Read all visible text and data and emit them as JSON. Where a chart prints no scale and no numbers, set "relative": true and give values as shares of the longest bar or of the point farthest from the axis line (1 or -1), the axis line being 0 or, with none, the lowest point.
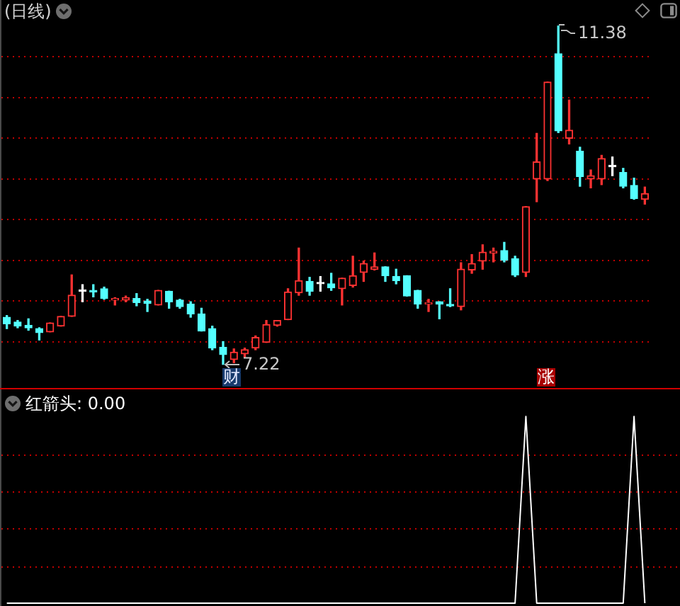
{
  "chart_data": [
    {
      "type": "candlestick",
      "title": "(日线)",
      "categories": [
        null,
        null,
        null,
        null,
        null,
        null,
        null,
        null,
        null,
        null,
        null,
        null,
        null,
        null,
        null,
        null,
        null,
        null,
        null,
        null,
        null,
        null,
        null,
        null,
        null,
        null,
        null,
        null,
        null,
        null,
        null,
        null,
        null,
        null,
        null,
        null,
        null,
        null,
        null,
        null,
        null,
        null,
        null,
        null,
        null,
        null,
        null,
        null,
        null,
        null,
        null,
        null,
        null,
        null,
        null,
        null,
        null,
        null,
        null,
        null
      ],
      "ohlc": [
        [
          7.8,
          7.82,
          7.66,
          7.72
        ],
        [
          7.74,
          7.76,
          7.67,
          7.69
        ],
        [
          7.7,
          7.78,
          7.64,
          7.67
        ],
        [
          7.66,
          7.67,
          7.52,
          7.61
        ],
        [
          7.62,
          7.73,
          7.62,
          7.73
        ],
        [
          7.69,
          7.81,
          7.69,
          7.81
        ],
        [
          7.81,
          8.32,
          7.81,
          8.07
        ],
        [
          8.12,
          8.2,
          7.99,
          8.12
        ],
        [
          8.13,
          8.2,
          8.05,
          8.11
        ],
        [
          8.15,
          8.17,
          8.02,
          8.03
        ],
        [
          8.01,
          8.04,
          7.95,
          8.03
        ],
        [
          8.01,
          8.06,
          7.99,
          8.04
        ],
        [
          8.03,
          8.09,
          7.94,
          7.98
        ],
        [
          8.0,
          8.02,
          7.87,
          7.97
        ],
        [
          7.95,
          8.13,
          7.95,
          8.13
        ],
        [
          8.12,
          8.12,
          7.91,
          7.99
        ],
        [
          8.01,
          8.02,
          7.91,
          7.93
        ],
        [
          7.96,
          7.99,
          7.8,
          7.84
        ],
        [
          7.84,
          7.91,
          7.63,
          7.63
        ],
        [
          7.66,
          7.69,
          7.4,
          7.42
        ],
        [
          7.43,
          7.5,
          7.22,
          7.34
        ],
        [
          7.28,
          7.41,
          7.24,
          7.37
        ],
        [
          7.35,
          7.42,
          7.31,
          7.4
        ],
        [
          7.42,
          7.57,
          7.4,
          7.55
        ],
        [
          7.49,
          7.76,
          7.49,
          7.71
        ],
        [
          7.7,
          7.76,
          7.69,
          7.76
        ],
        [
          7.77,
          8.15,
          7.77,
          8.11
        ],
        [
          8.1,
          8.65,
          8.07,
          8.25
        ],
        [
          8.24,
          8.29,
          8.07,
          8.12
        ],
        [
          8.21,
          8.3,
          8.12,
          8.21
        ],
        [
          8.21,
          8.34,
          8.13,
          8.16
        ],
        [
          8.15,
          8.28,
          7.95,
          8.28
        ],
        [
          8.19,
          8.55,
          8.17,
          8.31
        ],
        [
          8.35,
          8.49,
          8.24,
          8.46
        ],
        [
          8.39,
          8.59,
          8.38,
          8.42
        ],
        [
          8.42,
          8.42,
          8.24,
          8.31
        ],
        [
          8.3,
          8.39,
          8.21,
          8.25
        ],
        [
          8.31,
          8.31,
          8.06,
          8.06
        ],
        [
          8.13,
          8.13,
          7.91,
          7.96
        ],
        [
          7.96,
          8.02,
          7.87,
          7.98
        ],
        [
          7.99,
          7.99,
          7.78,
          7.96
        ],
        [
          7.95,
          8.15,
          7.93,
          7.94
        ],
        [
          7.93,
          8.47,
          7.89,
          8.39
        ],
        [
          8.38,
          8.57,
          8.34,
          8.46
        ],
        [
          8.49,
          8.69,
          8.39,
          8.6
        ],
        [
          8.59,
          8.65,
          8.48,
          8.61
        ],
        [
          8.62,
          8.72,
          8.48,
          8.5
        ],
        [
          8.52,
          8.55,
          8.3,
          8.32
        ],
        [
          8.35,
          9.16,
          8.3,
          9.16
        ],
        [
          9.5,
          10.06,
          9.22,
          9.71
        ],
        [
          9.5,
          10.69,
          9.48,
          10.69
        ],
        [
          11.04,
          11.38,
          10.07,
          10.09
        ],
        [
          10.0,
          10.47,
          9.93,
          10.1
        ],
        [
          9.84,
          9.89,
          9.41,
          9.53
        ],
        [
          9.5,
          9.61,
          9.39,
          9.54
        ],
        [
          9.5,
          9.79,
          9.43,
          9.75
        ],
        [
          9.65,
          9.77,
          9.54,
          9.65
        ],
        [
          9.58,
          9.63,
          9.39,
          9.41
        ],
        [
          9.42,
          9.51,
          9.25,
          9.26
        ],
        [
          9.25,
          9.4,
          9.19,
          9.32
        ]
      ],
      "colors": [
        "#54ffff",
        "#54ffff",
        "#54ffff",
        "#54ffff",
        "#ff3232",
        "#ff3232",
        "#ff3232",
        "#ffffff",
        "#54ffff",
        "#54ffff",
        "#ff3232",
        "#ff3232",
        "#54ffff",
        "#54ffff",
        "#ff3232",
        "#54ffff",
        "#54ffff",
        "#54ffff",
        "#54ffff",
        "#54ffff",
        "#54ffff",
        "#ff3232",
        "#ff3232",
        "#ff3232",
        "#ff3232",
        "#ff3232",
        "#ff3232",
        "#ff3232",
        "#54ffff",
        "#ffffff",
        "#54ffff",
        "#ff3232",
        "#ff3232",
        "#ff3232",
        "#ff3232",
        "#54ffff",
        "#54ffff",
        "#54ffff",
        "#54ffff",
        "#ff3232",
        "#54ffff",
        "#54ffff",
        "#ff3232",
        "#ff3232",
        "#ff3232",
        "#ff3232",
        "#54ffff",
        "#54ffff",
        "#ff3232",
        "#ff3232",
        "#ff3232",
        "#54ffff",
        "#ff3232",
        "#54ffff",
        "#ff3232",
        "#ff3232",
        "#ffffff",
        "#54ffff",
        "#54ffff",
        "#ff3232"
      ],
      "ylim": [
        6.93,
        11.7
      ],
      "yticks": [
        {
          "value": 7.5,
          "label": null
        },
        {
          "value": 8,
          "label": null
        },
        {
          "value": 8.5,
          "label": null
        },
        {
          "value": 9,
          "label": null
        },
        {
          "value": 9.5,
          "label": null
        },
        {
          "value": 10,
          "label": null
        },
        {
          "value": 10.5,
          "label": null
        },
        {
          "value": 11,
          "label": null
        }
      ],
      "grid": "y",
      "annotations": [
        "11.38",
        "7.22",
        "财",
        "涨"
      ]
    },
    {
      "type": "line",
      "title": "红箭头: 0.00",
      "categories": [
        null,
        null,
        null,
        null,
        null,
        null,
        null,
        null,
        null,
        null,
        null,
        null,
        null,
        null,
        null,
        null,
        null,
        null,
        null,
        null,
        null,
        null,
        null,
        null,
        null,
        null,
        null,
        null,
        null,
        null,
        null,
        null,
        null,
        null,
        null,
        null,
        null,
        null,
        null,
        null,
        null,
        null,
        null,
        null,
        null,
        null,
        null,
        null,
        null,
        null,
        null,
        null,
        null,
        null,
        null,
        null,
        null,
        null,
        null,
        null
      ],
      "values": [
        0,
        0,
        0,
        0,
        0,
        0,
        0,
        0,
        0,
        0,
        0,
        0,
        0,
        0,
        0,
        0,
        0,
        0,
        0,
        0,
        0,
        0,
        0,
        0,
        0,
        0,
        0,
        0,
        0,
        0,
        0,
        0,
        0,
        0,
        0,
        0,
        0,
        0,
        0,
        0,
        0,
        0,
        0,
        0,
        0,
        0,
        0,
        0,
        1,
        0,
        0,
        0,
        0,
        0,
        0,
        0,
        0,
        0,
        1,
        0
      ],
      "color": "#ffffff",
      "relative": true,
      "ref_lines": [
        {
          "axis": "y",
          "value": 0.2,
          "color": "#c00000",
          "line_style": "dotted"
        },
        {
          "axis": "y",
          "value": 0.4,
          "color": "#c00000",
          "line_style": "dotted"
        },
        {
          "axis": "y",
          "value": 0.6,
          "color": "#c00000",
          "line_style": "dotted"
        },
        {
          "axis": "y",
          "value": 0.8,
          "color": "#c00000",
          "line_style": "dotted"
        }
      ]
    }
  ]
}
